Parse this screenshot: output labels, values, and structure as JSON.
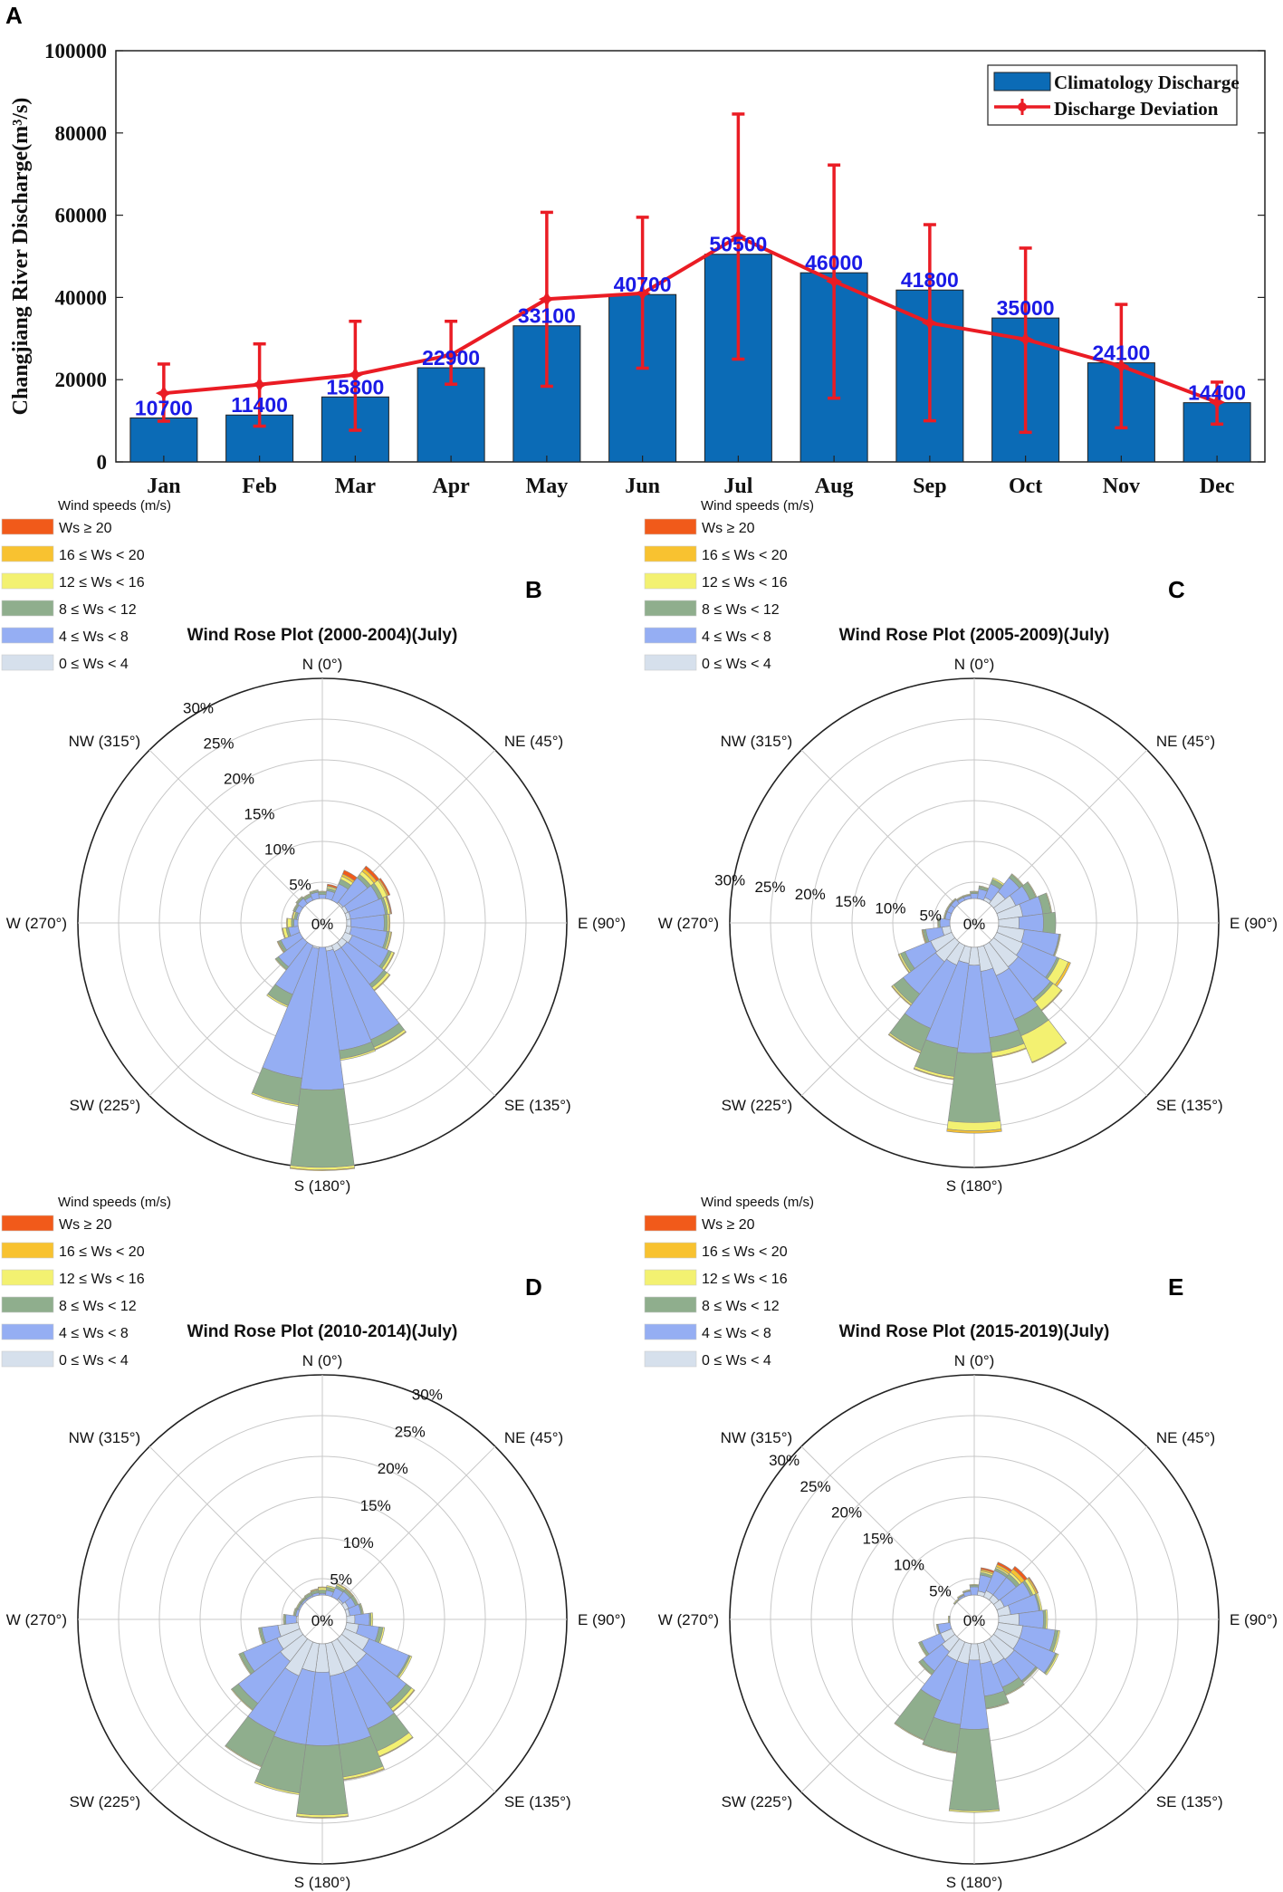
{
  "chart_data": [
    {
      "panel": "A",
      "type": "bar",
      "title": "",
      "xlabel": "",
      "ylabel": "Changjiang River Discharge(m³/s)",
      "ylim": [
        0,
        100000
      ],
      "yticks": [
        "0",
        "20000",
        "40000",
        "60000",
        "80000",
        "100000"
      ],
      "categories": [
        "Jan",
        "Feb",
        "Mar",
        "Apr",
        "May",
        "Jun",
        "Jul",
        "Aug",
        "Sep",
        "Oct",
        "Nov",
        "Dec"
      ],
      "bar_labels": [
        "10700",
        "11400",
        "15800",
        "22900",
        "33100",
        "40700",
        "50500",
        "46000",
        "41800",
        "35000",
        "24100",
        "14400"
      ],
      "series": [
        {
          "name": "Climatology Discharge",
          "type": "bar",
          "color": "#0b6bb6",
          "values": [
            10700,
            11400,
            15800,
            22900,
            33100,
            40700,
            50500,
            46000,
            41800,
            35000,
            24100,
            14400
          ]
        },
        {
          "name": "Discharge Deviation",
          "type": "line-errorbar",
          "color": "#ea1c24",
          "values": [
            16700,
            18800,
            21200,
            26000,
            39600,
            41000,
            54800,
            43900,
            33800,
            29800,
            23300,
            14500
          ],
          "upper": [
            23800,
            28700,
            34200,
            34200,
            60700,
            59500,
            84600,
            72200,
            57700,
            52000,
            38300,
            19400
          ],
          "lower": [
            9900,
            8700,
            7700,
            18900,
            18400,
            22800,
            25000,
            15500,
            10000,
            7200,
            8300,
            9200
          ]
        }
      ],
      "legend": "top-right"
    },
    {
      "panel": "B",
      "type": "windrose",
      "title": "Wind Rose Plot (2000-2004)(July)",
      "rings": [
        5,
        10,
        15,
        20,
        25,
        30
      ],
      "ring_labels": [
        "5%",
        "10%",
        "15%",
        "20%",
        "25%",
        "30%"
      ],
      "tick_angle_deg": 330,
      "hole": 3,
      "sectors_deg": [
        0,
        15,
        30,
        45,
        60,
        75,
        90,
        105,
        120,
        135,
        150,
        165,
        180,
        195,
        210,
        225,
        240,
        255,
        270,
        285,
        300,
        315,
        330,
        345
      ],
      "cumulative": [
        [
          1.5,
          1.5,
          3.0,
          3.2,
          3.4,
          3.5,
          3.5,
          3.6,
          4.0,
          3.8,
          3.8,
          3.5,
          3.0,
          3.2,
          3.0,
          2.8,
          2.4,
          1.8,
          1.4,
          1.2,
          1.3,
          1.4,
          1.3,
          1.5
        ],
        [
          3.5,
          4.0,
          5.2,
          7.0,
          7.5,
          7.8,
          7.6,
          8.0,
          8.8,
          9.5,
          15.5,
          15.8,
          20.5,
          19.2,
          9.5,
          6.8,
          5.5,
          4.2,
          3.5,
          3.2,
          3.6,
          3.8,
          3.5,
          3.8
        ],
        [
          3.8,
          4.3,
          5.8,
          7.5,
          8.0,
          8.1,
          8.0,
          8.3,
          9.2,
          10.0,
          16.5,
          16.8,
          30.0,
          22.5,
          11.0,
          7.2,
          5.8,
          4.5,
          3.8,
          3.5,
          3.8,
          4.0,
          3.8,
          4.0
        ],
        [
          3.9,
          4.5,
          6.2,
          8.0,
          8.6,
          8.4,
          8.2,
          8.5,
          9.5,
          10.4,
          16.8,
          17.0,
          30.3,
          22.7,
          11.2,
          7.3,
          5.9,
          4.9,
          4.3,
          3.7,
          3.9,
          4.1,
          3.9,
          4.1
        ],
        [
          3.9,
          4.6,
          6.5,
          8.4,
          8.8,
          8.5,
          8.3,
          8.6,
          9.6,
          10.5,
          16.9,
          17.0,
          30.4,
          22.7,
          11.2,
          7.3,
          6.0,
          5.0,
          4.4,
          3.8,
          3.9,
          4.1,
          3.9,
          4.1
        ],
        [
          3.9,
          4.8,
          7.0,
          8.8,
          9.0,
          8.6,
          8.3,
          8.6,
          9.6,
          10.5,
          16.9,
          17.0,
          30.4,
          22.7,
          11.2,
          7.3,
          6.0,
          5.0,
          4.4,
          3.8,
          3.9,
          4.1,
          3.9,
          4.1
        ]
      ]
    },
    {
      "panel": "C",
      "type": "windrose",
      "title": "Wind Rose Plot (2005-2009)(July)",
      "rings": [
        5,
        10,
        15,
        20,
        25,
        30
      ],
      "ring_labels": [
        "5%",
        "10%",
        "15%",
        "20%",
        "25%",
        "30%"
      ],
      "tick_angle_deg": 280,
      "hole": 3,
      "sectors_deg": [
        0,
        15,
        30,
        45,
        60,
        75,
        90,
        105,
        120,
        135,
        150,
        165,
        180,
        195,
        210,
        225,
        240,
        255,
        270,
        285,
        300,
        315,
        330,
        345
      ],
      "cumulative": [
        [
          2.0,
          2.8,
          3.4,
          4.8,
          5.5,
          6.0,
          5.5,
          6.2,
          6.5,
          6.8,
          7.0,
          6.0,
          5.2,
          5.0,
          5.6,
          6.0,
          5.8,
          4.0,
          3.0,
          2.4,
          2.0,
          2.0,
          1.8,
          1.8
        ],
        [
          3.6,
          4.2,
          5.2,
          7.0,
          7.4,
          8.5,
          8.5,
          10.5,
          11.0,
          11.8,
          12.8,
          14.2,
          16.0,
          15.5,
          14.0,
          11.0,
          9.2,
          6.0,
          4.2,
          3.6,
          3.6,
          3.6,
          3.4,
          3.4
        ],
        [
          3.8,
          4.5,
          5.8,
          7.5,
          8.2,
          9.5,
          10.0,
          10.6,
          11.3,
          12.2,
          15.0,
          16.0,
          24.5,
          19.0,
          17.0,
          12.5,
          9.8,
          6.3,
          4.4,
          3.7,
          3.7,
          3.7,
          3.5,
          3.5
        ],
        [
          3.9,
          4.6,
          6.0,
          7.6,
          8.3,
          9.6,
          10.0,
          10.7,
          12.5,
          13.5,
          18.5,
          16.6,
          25.5,
          19.3,
          17.2,
          12.7,
          10.0,
          6.4,
          4.5,
          3.8,
          3.8,
          3.8,
          3.6,
          3.6
        ],
        [
          3.9,
          4.6,
          6.0,
          7.6,
          8.3,
          9.6,
          10.0,
          10.7,
          12.8,
          13.6,
          18.6,
          16.7,
          25.8,
          19.4,
          17.3,
          12.8,
          10.1,
          6.5,
          4.5,
          3.8,
          3.8,
          3.8,
          3.6,
          3.6
        ],
        [
          3.9,
          4.6,
          6.0,
          7.6,
          8.3,
          9.6,
          10.0,
          10.7,
          12.8,
          13.6,
          18.6,
          16.7,
          25.8,
          19.4,
          17.3,
          12.8,
          10.1,
          6.5,
          4.5,
          3.8,
          3.8,
          3.8,
          3.6,
          3.6
        ]
      ]
    },
    {
      "panel": "D",
      "type": "windrose",
      "title": "Wind Rose Plot (2010-2014)(July)",
      "rings": [
        5,
        10,
        15,
        20,
        25,
        30
      ],
      "ring_labels": [
        "5%",
        "10%",
        "15%",
        "20%",
        "25%",
        "30%"
      ],
      "tick_angle_deg": 25,
      "hole": 3,
      "sectors_deg": [
        0,
        15,
        30,
        45,
        60,
        75,
        90,
        105,
        120,
        135,
        150,
        165,
        180,
        195,
        210,
        225,
        240,
        255,
        270,
        285,
        300,
        315,
        330,
        345
      ],
      "cumulative": [
        [
          1.8,
          2.0,
          2.8,
          3.2,
          3.5,
          3.4,
          4.0,
          4.5,
          6.2,
          6.8,
          7.0,
          7.0,
          6.5,
          6.5,
          7.5,
          6.5,
          6.0,
          5.5,
          3.2,
          2.0,
          1.8,
          1.7,
          1.8,
          1.8
        ],
        [
          3.2,
          3.6,
          4.2,
          4.3,
          4.4,
          4.8,
          5.8,
          7.0,
          11.5,
          13.0,
          14.5,
          15.5,
          15.5,
          15.5,
          15.0,
          13.0,
          10.5,
          7.5,
          4.5,
          3.3,
          3.2,
          3.2,
          3.2,
          3.3
        ],
        [
          3.6,
          4.0,
          4.5,
          4.6,
          4.7,
          5.0,
          6.0,
          7.5,
          11.7,
          13.8,
          17.5,
          19.5,
          24.0,
          21.5,
          19.5,
          14.0,
          11.0,
          7.8,
          4.7,
          3.5,
          3.4,
          3.4,
          3.5,
          3.6
        ],
        [
          3.9,
          4.2,
          4.7,
          4.7,
          4.8,
          5.1,
          6.2,
          7.7,
          11.9,
          14.2,
          18.2,
          19.8,
          24.3,
          21.7,
          19.6,
          14.1,
          11.1,
          7.9,
          4.8,
          3.6,
          3.5,
          3.5,
          3.6,
          3.7
        ],
        [
          4.0,
          4.2,
          4.8,
          4.8,
          4.8,
          5.1,
          6.2,
          7.7,
          11.9,
          14.3,
          18.3,
          19.9,
          24.4,
          21.7,
          19.6,
          14.1,
          11.1,
          7.9,
          4.8,
          3.6,
          3.5,
          3.5,
          3.6,
          3.8
        ],
        [
          4.0,
          4.2,
          4.8,
          4.8,
          4.8,
          5.1,
          6.2,
          7.7,
          11.9,
          14.3,
          18.3,
          19.9,
          24.4,
          21.7,
          19.6,
          14.1,
          11.1,
          7.9,
          4.8,
          3.6,
          3.5,
          3.5,
          3.6,
          3.8
        ]
      ]
    },
    {
      "panel": "E",
      "type": "windrose",
      "title": "Wind Rose Plot (2015-2019)(July)",
      "rings": [
        5,
        10,
        15,
        20,
        25,
        30
      ],
      "ring_labels": [
        "5%",
        "10%",
        "15%",
        "20%",
        "25%",
        "30%"
      ],
      "tick_angle_deg": 310,
      "hole": 3,
      "sectors_deg": [
        0,
        15,
        30,
        45,
        60,
        75,
        90,
        105,
        120,
        135,
        150,
        165,
        180,
        195,
        210,
        225,
        240,
        255,
        270,
        285,
        300,
        315,
        330,
        345
      ],
      "cumulative": [
        [
          2.8,
          3.5,
          3.8,
          3.8,
          4.0,
          4.5,
          5.5,
          6.0,
          6.0,
          6.2,
          6.0,
          5.5,
          5.0,
          5.5,
          5.5,
          5.0,
          4.5,
          3.0,
          2.0,
          1.5,
          1.5,
          1.5,
          1.8,
          2.2
        ],
        [
          4.0,
          5.5,
          6.5,
          6.5,
          7.5,
          8.0,
          8.5,
          10.0,
          10.8,
          9.5,
          9.0,
          9.5,
          13.5,
          13.0,
          10.8,
          8.0,
          7.0,
          4.5,
          3.0,
          2.5,
          2.8,
          3.0,
          3.2,
          3.5
        ],
        [
          4.2,
          5.8,
          6.8,
          7.0,
          7.8,
          8.2,
          8.8,
          10.4,
          11.0,
          9.7,
          10.0,
          11.0,
          23.5,
          16.5,
          16.0,
          8.5,
          7.3,
          4.6,
          3.1,
          2.6,
          2.9,
          3.1,
          3.3,
          3.6
        ],
        [
          4.3,
          6.0,
          7.0,
          7.3,
          8.2,
          8.4,
          9.0,
          10.6,
          11.2,
          9.8,
          10.1,
          11.1,
          23.7,
          16.6,
          16.1,
          8.6,
          7.4,
          4.7,
          3.2,
          2.7,
          3.0,
          3.2,
          3.4,
          3.7
        ],
        [
          4.3,
          6.2,
          7.3,
          7.8,
          8.4,
          8.4,
          9.0,
          10.6,
          11.2,
          9.8,
          10.1,
          11.1,
          23.7,
          16.6,
          16.1,
          8.6,
          7.4,
          4.7,
          3.2,
          2.7,
          3.0,
          3.2,
          3.4,
          3.7
        ],
        [
          4.3,
          6.4,
          7.6,
          8.2,
          8.5,
          8.4,
          9.0,
          10.6,
          11.2,
          9.8,
          10.1,
          11.1,
          23.7,
          16.6,
          16.1,
          8.6,
          7.4,
          4.7,
          3.2,
          2.7,
          3.0,
          3.2,
          3.4,
          3.7
        ]
      ]
    }
  ],
  "panel_letters": [
    "A",
    "B",
    "C",
    "D",
    "E"
  ],
  "compass_labels": [
    "N (0°)",
    "NE (45°)",
    "E (90°)",
    "SE (135°)",
    "S (180°)",
    "SW (225°)",
    "W (270°)",
    "NW (315°)"
  ],
  "wind_legend": {
    "title": "Wind speeds (m/s)",
    "center_label": "0%",
    "items": [
      {
        "label": "Ws ≥ 20",
        "color": "#f15a1a"
      },
      {
        "label": "16 ≤ Ws < 20",
        "color": "#f8c230"
      },
      {
        "label": "12 ≤ Ws < 16",
        "color": "#f3f171"
      },
      {
        "label": "8 ≤ Ws < 12",
        "color": "#8fae8d"
      },
      {
        "label": "4 ≤ Ws < 8",
        "color": "#95aef3"
      },
      {
        "label": "0 ≤ Ws < 4",
        "color": "#d6e0ec"
      }
    ]
  }
}
